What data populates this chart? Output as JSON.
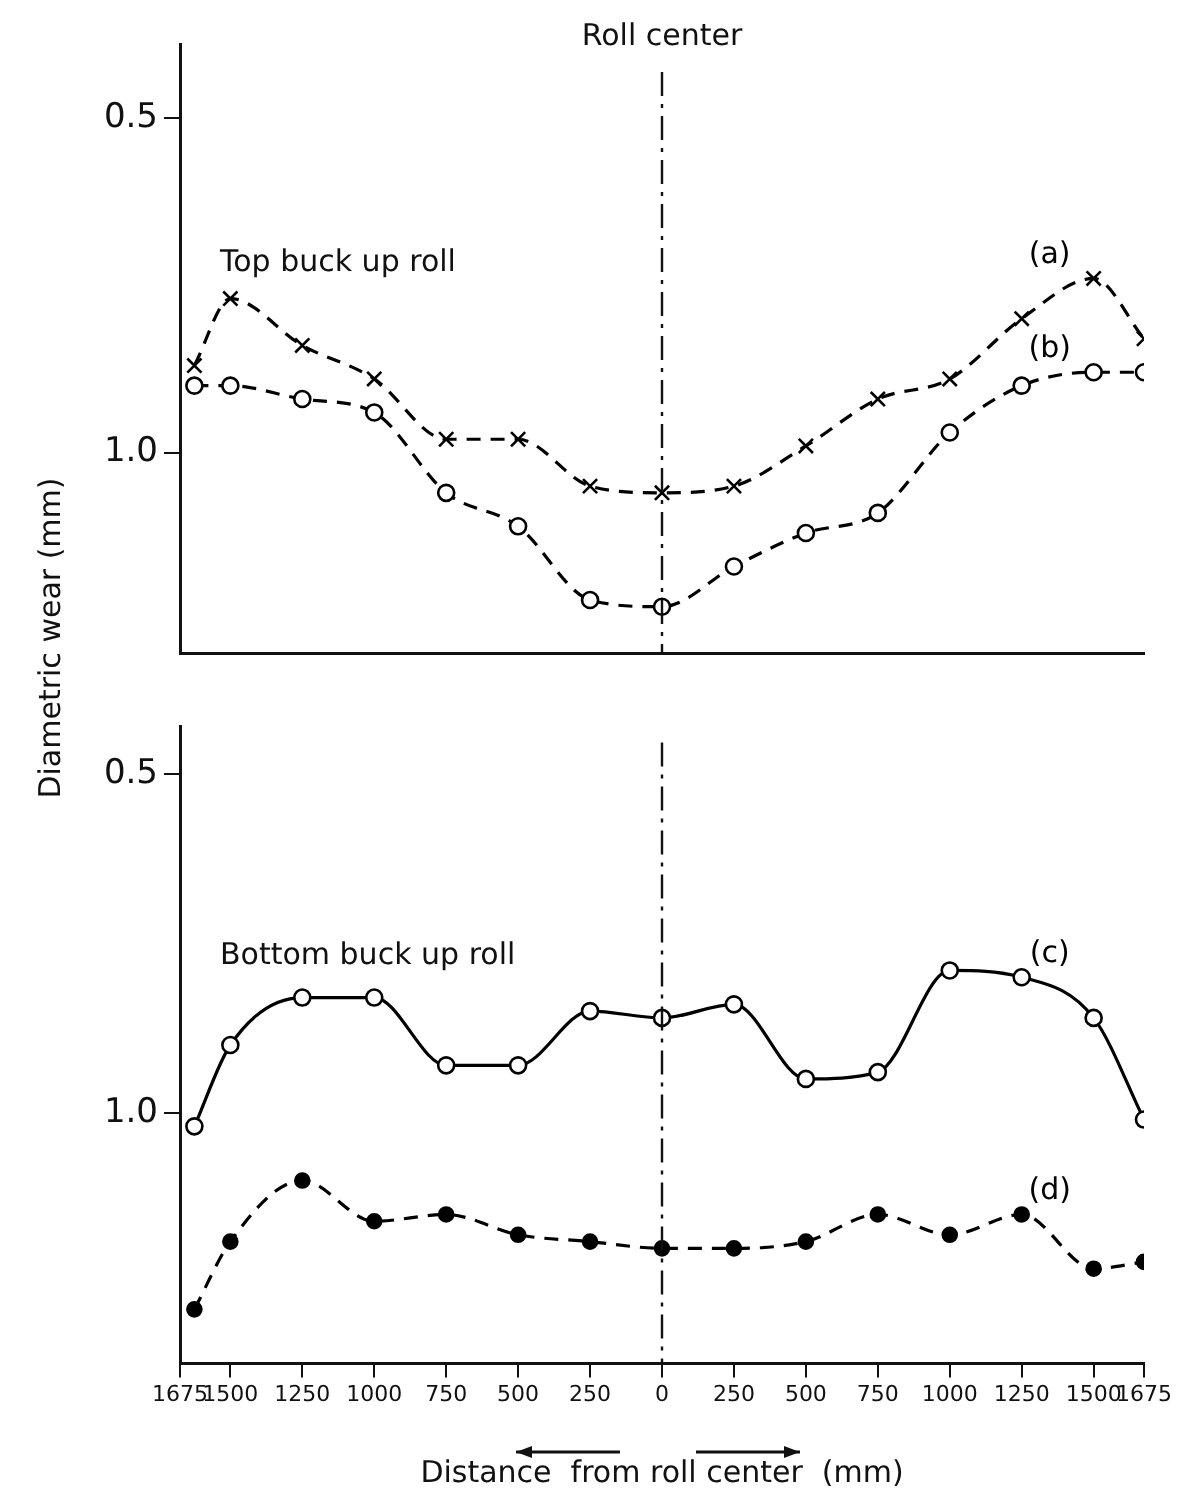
{
  "chart_data": [
    {
      "type": "line",
      "ylabel": "Diametric wear (mm)",
      "annotations": [
        "Top buck up roll"
      ],
      "x": [
        -1625,
        -1500,
        -1250,
        -1000,
        -750,
        -500,
        -250,
        0,
        250,
        500,
        750,
        1000,
        1250,
        1500,
        1675
      ],
      "series": [
        {
          "name": "(a)",
          "color": "#000000",
          "marker": "cross",
          "line_style": "dashed",
          "values": [
            0.87,
            0.77,
            0.84,
            0.89,
            0.98,
            0.98,
            1.05,
            1.06,
            1.05,
            0.99,
            0.92,
            0.89,
            0.8,
            0.74,
            0.83
          ]
        },
        {
          "name": "(b)",
          "color": "#000000",
          "marker": "circle",
          "line_style": "dashed",
          "values": [
            0.9,
            0.9,
            0.92,
            0.94,
            1.06,
            1.11,
            1.22,
            1.23,
            1.17,
            1.12,
            1.09,
            0.97,
            0.9,
            0.88,
            0.88
          ]
        }
      ],
      "xlim": [
        -1675,
        1675
      ],
      "ylim": [
        1.3,
        0.39
      ],
      "yticks": [
        0.5,
        {
          "value": 1,
          "label": "1.0"
        }
      ],
      "ref_lines": [
        {
          "axis": "x",
          "value": 0,
          "label": "Roll center",
          "line_style": "dashed"
        }
      ],
      "tick_labels": "y",
      "grid": false,
      "legend": false
    },
    {
      "type": "line",
      "xlabel": "Distance  from roll center  (mm)",
      "annotations": [
        "Bottom buck up roll"
      ],
      "x": [
        -1625,
        -1500,
        -1250,
        -1000,
        -750,
        -500,
        -250,
        0,
        250,
        500,
        750,
        1000,
        1250,
        1500,
        1675
      ],
      "series": [
        {
          "name": "(c)",
          "color": "#000000",
          "marker": "circle",
          "line_style": "solid",
          "values": [
            1.02,
            0.9,
            0.83,
            0.83,
            0.93,
            0.93,
            0.85,
            0.86,
            0.84,
            0.95,
            0.94,
            0.79,
            0.8,
            0.86,
            1.01
          ]
        },
        {
          "name": "(d)",
          "color": "#000000",
          "marker": "filled_circle",
          "line_style": "dashed",
          "values": [
            1.29,
            1.19,
            1.1,
            1.16,
            1.15,
            1.18,
            1.19,
            1.2,
            1.2,
            1.19,
            1.15,
            1.18,
            1.15,
            1.23,
            1.22
          ]
        }
      ],
      "xlim": [
        -1675,
        1675
      ],
      "xticks": [
        {
          "value": -1675,
          "label": "1675"
        },
        {
          "value": -1500,
          "label": "1500"
        },
        {
          "value": -1250,
          "label": "1250"
        },
        {
          "value": -1000,
          "label": "1000"
        },
        {
          "value": -750,
          "label": "750"
        },
        {
          "value": -500,
          "label": "500"
        },
        {
          "value": -250,
          "label": "250"
        },
        0,
        250,
        500,
        750,
        1000,
        1250,
        1500,
        1675
      ],
      "ylim": [
        1.37,
        0.43
      ],
      "yticks": [
        0.5,
        {
          "value": 1,
          "label": "1.0"
        }
      ],
      "ref_lines": [
        {
          "axis": "x",
          "value": 0,
          "line_style": "dashed"
        }
      ],
      "grid": false,
      "legend": false
    }
  ]
}
